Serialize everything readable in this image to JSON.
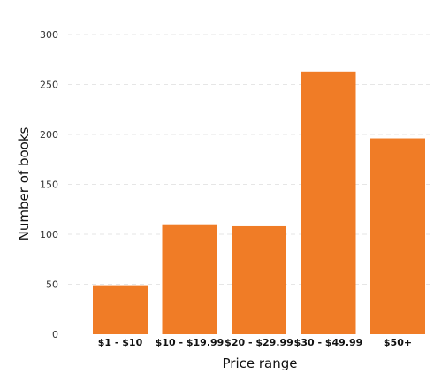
{
  "chart_data": {
    "type": "bar",
    "title": "",
    "xlabel": "Price range",
    "ylabel": "Number of books",
    "categories": [
      "$1 - $10",
      "$10 - $19.99",
      "$20 - $29.99",
      "$30 - $49.99",
      "$50+"
    ],
    "values": [
      49,
      110,
      108,
      263,
      196
    ],
    "ylim": [
      0,
      300
    ],
    "yticks": [
      0,
      50,
      100,
      150,
      200,
      250,
      300
    ],
    "grid": "horizontal dashed",
    "legend": "none",
    "bar_color": "#f07c26",
    "grid_color": "#e6e6e6"
  }
}
